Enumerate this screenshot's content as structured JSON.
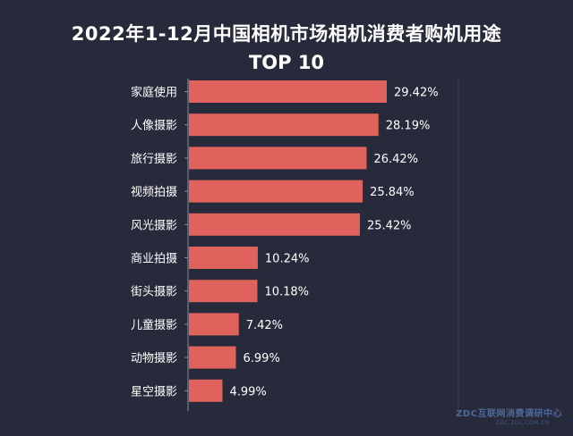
{
  "chart_data": {
    "type": "bar",
    "orientation": "horizontal",
    "title_line1": "2022年1-12月中国相机市场相机消费者购机用途",
    "title_line2": "TOP 10",
    "categories": [
      "家庭使用",
      "人像摄影",
      "旅行摄影",
      "视频拍摄",
      "风光摄影",
      "商业拍摄",
      "街头摄影",
      "儿童摄影",
      "动物摄影",
      "星空摄影"
    ],
    "values": [
      29.42,
      28.19,
      26.42,
      25.84,
      25.42,
      10.24,
      10.18,
      7.42,
      6.99,
      4.99
    ],
    "value_labels": [
      "29.42%",
      "28.19%",
      "26.42%",
      "25.84%",
      "25.42%",
      "10.24%",
      "10.18%",
      "7.42%",
      "6.99%",
      "4.99%"
    ],
    "xlim": [
      0,
      40
    ],
    "xlabel": "",
    "ylabel": "",
    "grid": false,
    "legend": "none"
  },
  "colors": {
    "background": "#272a3b",
    "bar": "#e0625c",
    "text": "#ffffff",
    "axis": "#8a8c9a"
  },
  "watermark": {
    "text": "ZDC互联网消费调研中心",
    "subtext": "ZDC.ZOL.COM.CN"
  }
}
